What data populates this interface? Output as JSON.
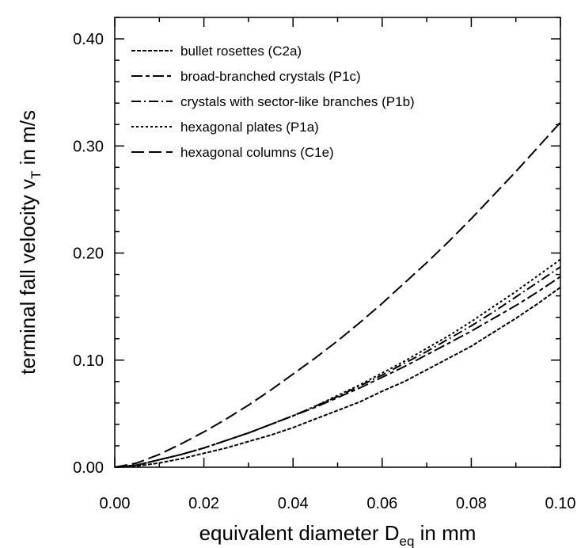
{
  "chart_data": {
    "type": "line",
    "title": "",
    "xlabel": {
      "main": "equivalent diameter D",
      "sub": "eq",
      "tail": " in mm"
    },
    "ylabel": {
      "main": "terminal fall velocity v",
      "sub": "T",
      "tail": " in m/s"
    },
    "xlim": [
      0.0,
      0.1
    ],
    "ylim": [
      0.0,
      0.42
    ],
    "xticks": [
      "0.00",
      "0.02",
      "0.04",
      "0.06",
      "0.08",
      "0.10"
    ],
    "yticks": [
      "0.00",
      "0.10",
      "0.20",
      "0.30",
      "0.40"
    ],
    "grid": false,
    "legend_position": "top-left",
    "x": [
      0.0,
      0.005,
      0.01,
      0.015,
      0.02,
      0.025,
      0.03,
      0.035,
      0.04,
      0.045,
      0.05,
      0.055,
      0.06,
      0.065,
      0.07,
      0.075,
      0.08,
      0.085,
      0.09,
      0.095,
      0.1
    ],
    "series": [
      {
        "name": "bullet rosettes (C2a)",
        "dash": "short",
        "values": [
          0.0,
          0.001,
          0.004,
          0.008,
          0.013,
          0.018,
          0.024,
          0.03,
          0.037,
          0.045,
          0.053,
          0.061,
          0.071,
          0.08,
          0.091,
          0.102,
          0.113,
          0.126,
          0.139,
          0.153,
          0.168
        ]
      },
      {
        "name": "broad-branched crystals (P1c)",
        "dash": "long-short",
        "values": [
          0.0,
          0.002,
          0.007,
          0.012,
          0.018,
          0.025,
          0.032,
          0.04,
          0.048,
          0.056,
          0.065,
          0.074,
          0.084,
          0.094,
          0.105,
          0.116,
          0.127,
          0.139,
          0.151,
          0.164,
          0.178
        ]
      },
      {
        "name": "crystals with sector-like branches (P1b)",
        "dash": "dash-dot",
        "values": [
          0.0,
          0.002,
          0.007,
          0.012,
          0.018,
          0.025,
          0.032,
          0.04,
          0.048,
          0.057,
          0.066,
          0.076,
          0.086,
          0.097,
          0.108,
          0.12,
          0.132,
          0.145,
          0.159,
          0.173,
          0.187
        ]
      },
      {
        "name": "hexagonal plates (P1a)",
        "dash": "dotted",
        "values": [
          0.0,
          0.002,
          0.007,
          0.012,
          0.018,
          0.025,
          0.032,
          0.04,
          0.048,
          0.057,
          0.067,
          0.077,
          0.088,
          0.099,
          0.111,
          0.123,
          0.136,
          0.15,
          0.164,
          0.179,
          0.194
        ]
      },
      {
        "name": "hexagonal columns (C1e)",
        "dash": "long",
        "values": [
          0.0,
          0.004,
          0.012,
          0.022,
          0.033,
          0.045,
          0.058,
          0.072,
          0.087,
          0.102,
          0.118,
          0.135,
          0.153,
          0.172,
          0.191,
          0.211,
          0.232,
          0.254,
          0.276,
          0.299,
          0.322
        ]
      }
    ]
  }
}
